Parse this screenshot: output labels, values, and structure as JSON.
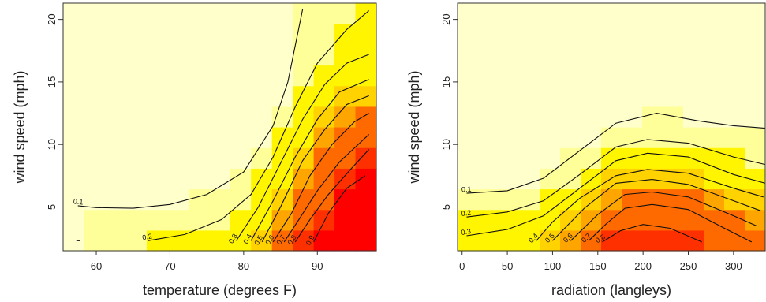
{
  "chart_data": [
    {
      "type": "heatmap",
      "xlabel": "temperature (degrees F)",
      "ylabel": "wind speed (mph)",
      "xlim": [
        55.5,
        98
      ],
      "ylim": [
        1.5,
        21.3
      ],
      "xticks": [
        60,
        70,
        80,
        90
      ],
      "yticks": [
        5,
        10,
        15,
        20
      ],
      "colorscale": [
        "#ffffcc",
        "#ffff99",
        "#fff500",
        "#ffd200",
        "#ffa500",
        "#ff6a00",
        "#ff3000",
        "#ff0000"
      ],
      "contours": [
        {
          "label": "0.1",
          "x": [
            57.5,
            60,
            65,
            70,
            75,
            80,
            84,
            86,
            88
          ],
          "y": [
            5.1,
            4.95,
            4.9,
            5.2,
            6.0,
            7.8,
            11.5,
            15.0,
            20.8
          ]
        },
        {
          "label": "0.2",
          "x": [
            67,
            72,
            77,
            81,
            84,
            87,
            90,
            94,
            97
          ],
          "y": [
            2.3,
            2.8,
            4.0,
            6.0,
            9.0,
            13.0,
            16.5,
            19.2,
            20.7
          ]
        },
        {
          "label": "0.3",
          "x": [
            79,
            82,
            85,
            88,
            91,
            94,
            97
          ],
          "y": [
            2.3,
            5.0,
            8.5,
            12.0,
            14.8,
            16.5,
            17.2
          ]
        },
        {
          "label": "0.4",
          "x": [
            81,
            84,
            87,
            90,
            93,
            97
          ],
          "y": [
            2.3,
            5.5,
            9.0,
            12.0,
            14.2,
            15.2
          ]
        },
        {
          "label": "0.5",
          "x": [
            82.5,
            85,
            88,
            91,
            94,
            97
          ],
          "y": [
            2.2,
            5.0,
            8.7,
            11.2,
            13.2,
            13.9
          ]
        },
        {
          "label": "0.6",
          "x": [
            84,
            86.5,
            89,
            92,
            95,
            97
          ],
          "y": [
            2.2,
            4.5,
            7.5,
            10.0,
            11.8,
            12.5
          ]
        },
        {
          "label": "0.7",
          "x": [
            85.5,
            87.5,
            90,
            93,
            97
          ],
          "y": [
            2.2,
            4.0,
            6.3,
            8.6,
            10.8
          ]
        },
        {
          "label": "0.8",
          "x": [
            87,
            89,
            91.5,
            94.5,
            97
          ],
          "y": [
            2.2,
            4.0,
            6.0,
            8.0,
            9.6
          ]
        },
        {
          "label": "0.9",
          "x": [
            89.5,
            91.5,
            94,
            96.5
          ],
          "y": [
            2.2,
            4.5,
            6.5,
            7.5
          ]
        }
      ],
      "fragments": [
        {
          "x": [
            57.3,
            57.8
          ],
          "y": [
            2.3,
            2.3
          ]
        }
      ]
    },
    {
      "type": "heatmap",
      "xlabel": "radiation (langleys)",
      "ylabel": "wind speed (mph)",
      "xlim": [
        -5,
        335
      ],
      "ylim": [
        1.5,
        21.3
      ],
      "xticks": [
        0,
        50,
        100,
        150,
        200,
        250,
        300
      ],
      "yticks": [
        5,
        10,
        15,
        20
      ],
      "colorscale": [
        "#ffffcc",
        "#ffff99",
        "#fff500",
        "#ffd200",
        "#ffa500",
        "#ff6a00",
        "#ff3000",
        "#ff0000"
      ],
      "contours": [
        {
          "label": "0.1",
          "x": [
            5,
            50,
            90,
            130,
            170,
            215,
            260,
            300,
            335
          ],
          "y": [
            6.1,
            6.3,
            7.3,
            9.5,
            11.7,
            12.5,
            11.9,
            11.5,
            11.3
          ]
        },
        {
          "label": "0.2",
          "x": [
            5,
            50,
            90,
            130,
            170,
            205,
            250,
            300,
            335
          ],
          "y": [
            4.2,
            4.6,
            5.5,
            7.6,
            9.8,
            10.4,
            10.1,
            9.0,
            8.4
          ]
        },
        {
          "label": "0.3",
          "x": [
            5,
            50,
            90,
            130,
            170,
            205,
            250,
            300,
            335
          ],
          "y": [
            2.7,
            3.2,
            4.3,
            6.5,
            8.7,
            9.3,
            9.0,
            7.6,
            6.9
          ]
        },
        {
          "label": "0.4",
          "x": [
            82,
            100,
            130,
            170,
            205,
            250,
            300,
            333
          ],
          "y": [
            2.3,
            3.8,
            5.7,
            7.5,
            8.0,
            7.7,
            6.5,
            5.8
          ]
        },
        {
          "label": "0.5",
          "x": [
            100,
            135,
            170,
            210,
            250,
            300,
            330
          ],
          "y": [
            2.3,
            4.9,
            6.9,
            7.2,
            6.8,
            5.5,
            4.7
          ]
        },
        {
          "label": "0.6",
          "x": [
            120,
            150,
            180,
            210,
            250,
            300,
            325
          ],
          "y": [
            2.3,
            4.4,
            6.0,
            6.2,
            5.8,
            4.3,
            3.5
          ]
        },
        {
          "label": "0.7",
          "x": [
            140,
            160,
            180,
            210,
            250,
            290,
            320
          ],
          "y": [
            2.3,
            3.7,
            4.9,
            5.2,
            4.8,
            3.3,
            2.2
          ]
        },
        {
          "label": "0.8",
          "x": [
            155,
            175,
            200,
            230,
            265
          ],
          "y": [
            2.2,
            3.1,
            3.6,
            3.3,
            2.2
          ]
        }
      ],
      "fragments": []
    }
  ]
}
